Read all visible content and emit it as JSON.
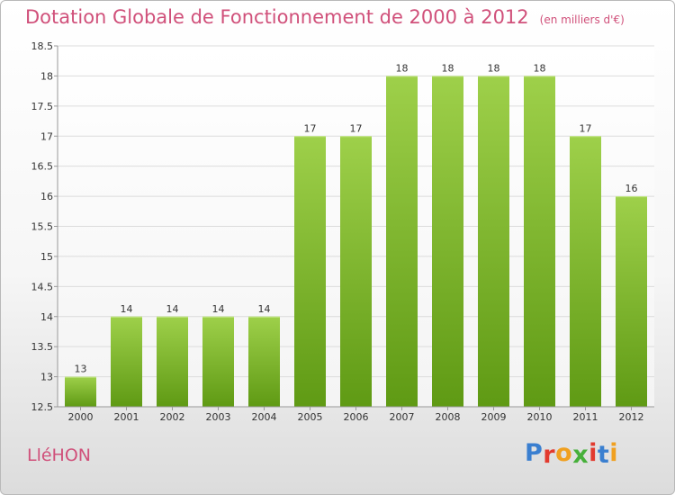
{
  "title": "Dotation Globale de Fonctionnement de 2000 à 2012",
  "unit": "(en milliers d'€)",
  "town": "LléHON",
  "logo": {
    "text": "Proxiti",
    "letter_colors": [
      "#3a7fd0",
      "#e23a2e",
      "#f0a020",
      "#46b03a",
      "#e23a2e",
      "#3a7fd0",
      "#f0a020"
    ]
  },
  "colors": {
    "title": "#d0507a",
    "bar_top": "#9ed04a",
    "bar_bottom": "#5f9a14",
    "grid": "#dcdcdc"
  },
  "chart_data": {
    "type": "bar",
    "title": "Dotation Globale de Fonctionnement de 2000 à 2012",
    "subtitle": "(en milliers d'€)",
    "xlabel": "",
    "ylabel": "",
    "categories": [
      "2000",
      "2001",
      "2002",
      "2003",
      "2004",
      "2005",
      "2006",
      "2007",
      "2008",
      "2009",
      "2010",
      "2011",
      "2012"
    ],
    "values": [
      13,
      14,
      14,
      14,
      14,
      17,
      17,
      18,
      18,
      18,
      18,
      17,
      16
    ],
    "data_labels": [
      "13",
      "14",
      "14",
      "14",
      "14",
      "17",
      "17",
      "18",
      "18",
      "18",
      "18",
      "17",
      "16"
    ],
    "ylim": [
      12.5,
      18.5
    ],
    "yticks": [
      "12.5",
      "13",
      "13.5",
      "14",
      "14.5",
      "15",
      "15.5",
      "16",
      "16.5",
      "17",
      "17.5",
      "18",
      "18.5"
    ],
    "grid": true,
    "legend": "none"
  }
}
